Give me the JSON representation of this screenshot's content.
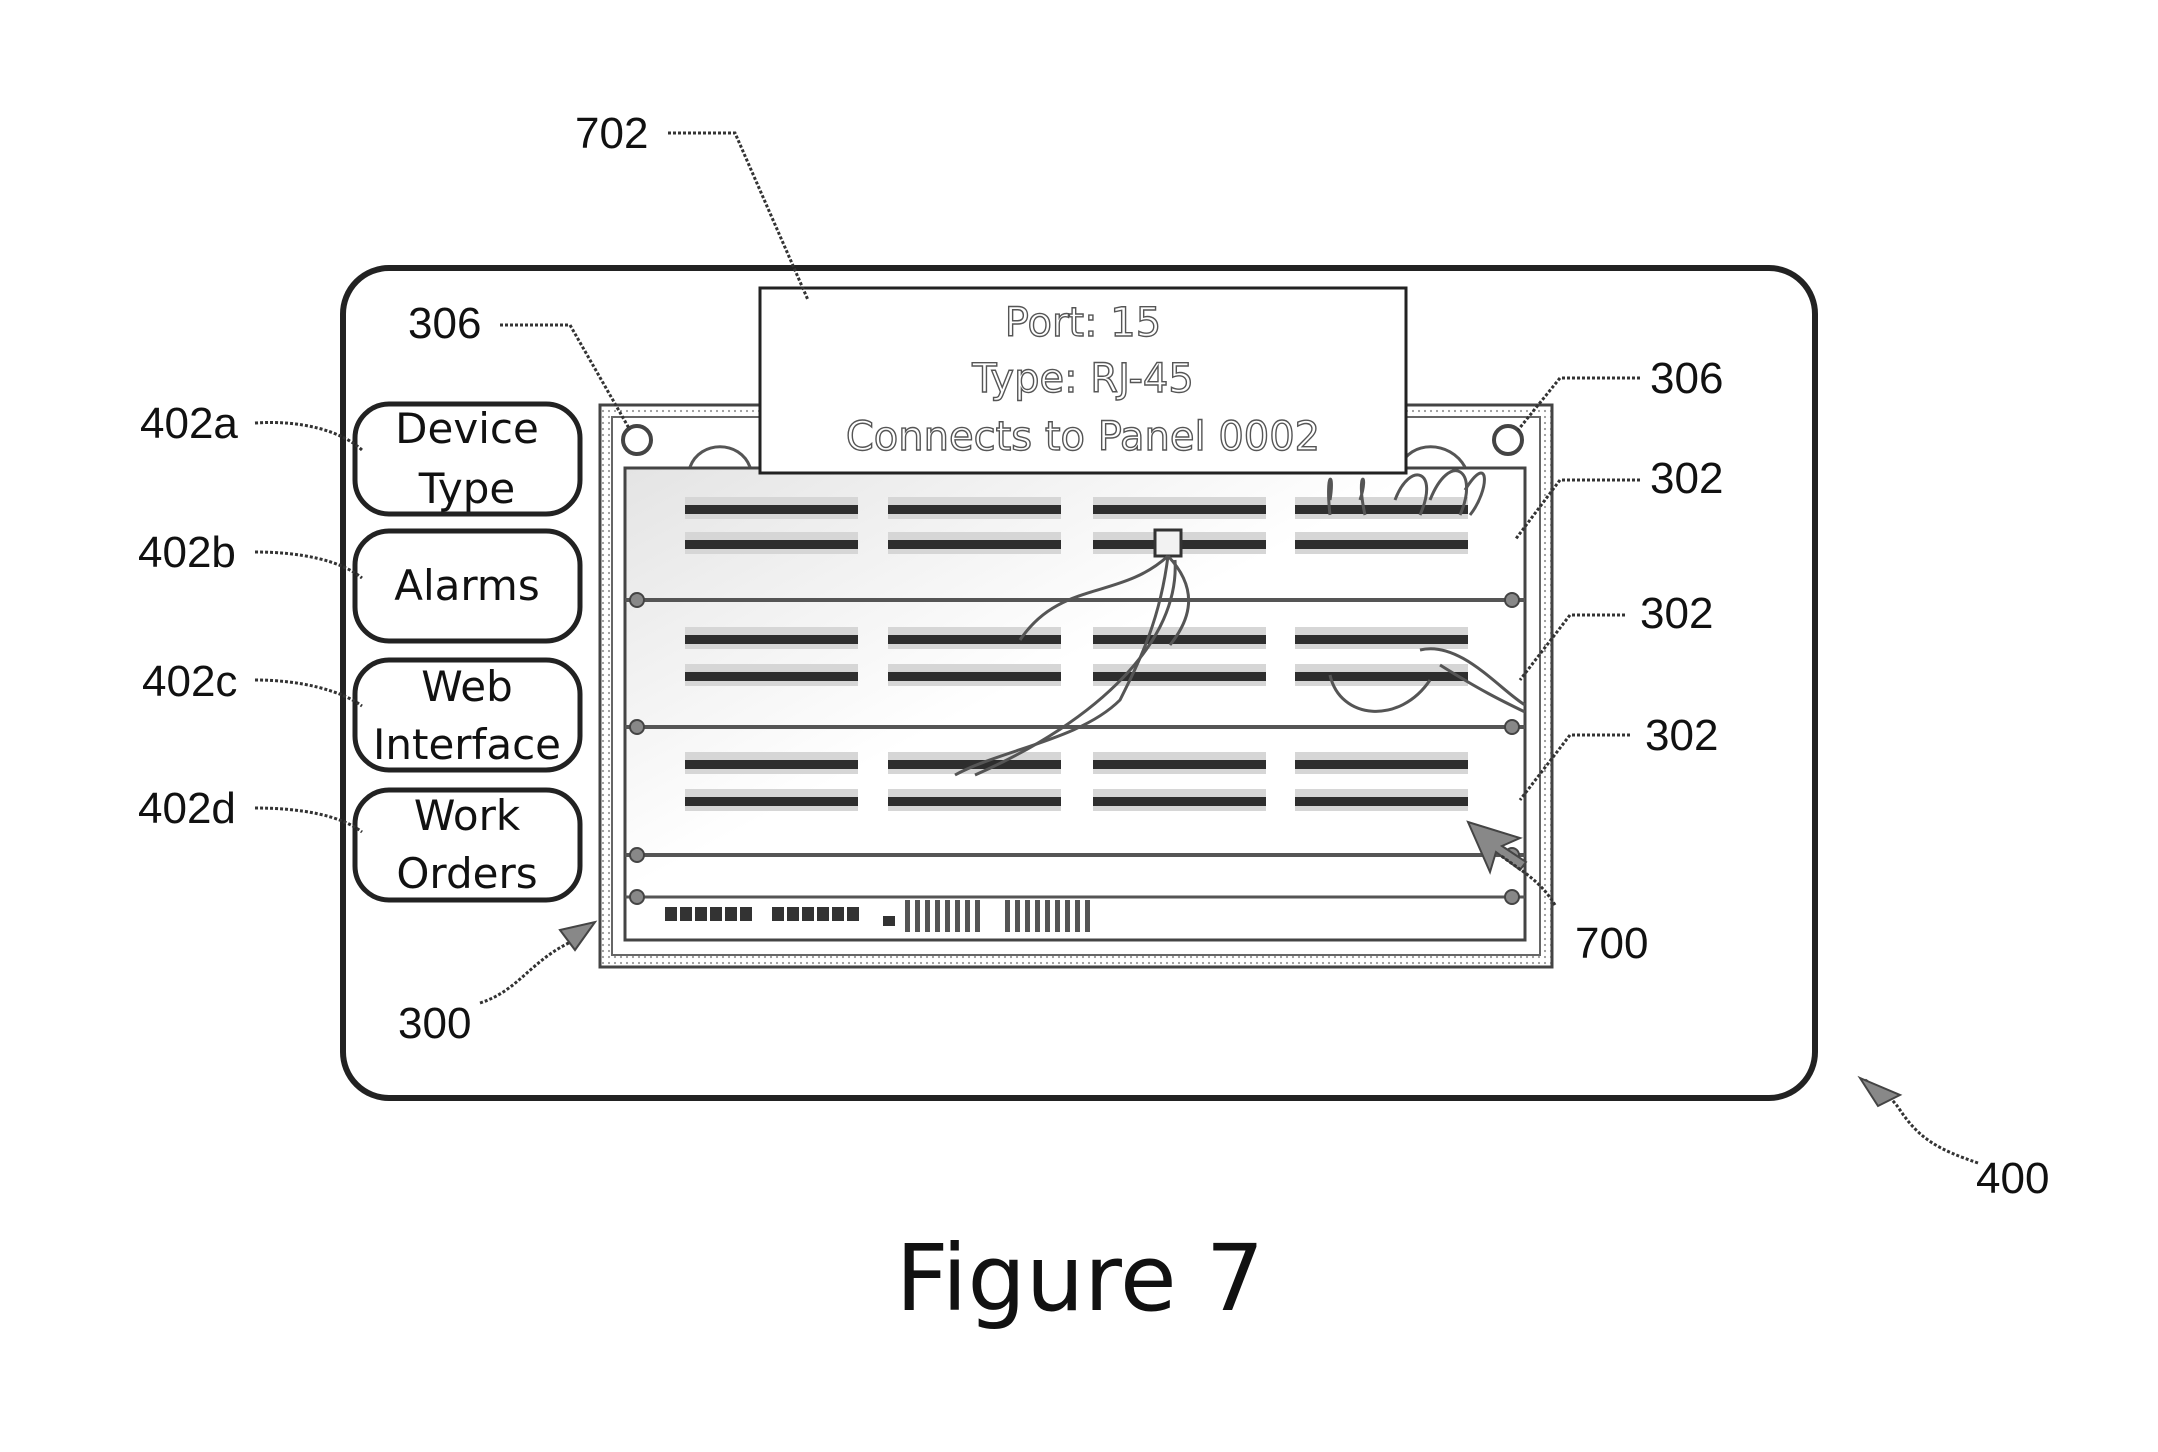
{
  "figure": {
    "caption": "Figure 7"
  },
  "buttons": [
    {
      "id": "device-type",
      "lines": [
        "Device",
        "Type"
      ],
      "ref": "402a"
    },
    {
      "id": "alarms",
      "lines": [
        "Alarms"
      ],
      "ref": "402b"
    },
    {
      "id": "web-interface",
      "lines": [
        "Web",
        "Interface"
      ],
      "ref": "402c"
    },
    {
      "id": "work-orders",
      "lines": [
        "Work",
        "Orders"
      ],
      "ref": "402d"
    }
  ],
  "tooltip": {
    "ref": "702",
    "lines": [
      "Port: 15",
      "Type: RJ-45",
      "Connects to Panel 0002"
    ]
  },
  "refs": {
    "display": "400",
    "rack": "300",
    "screw_left": "306",
    "screw_right": "306",
    "panel_1": "302",
    "panel_2": "302",
    "panel_3": "302",
    "cursor": "700"
  }
}
